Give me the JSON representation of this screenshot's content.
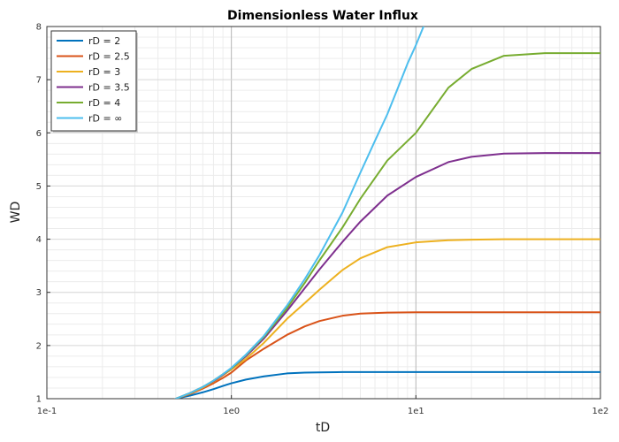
{
  "chart_data": {
    "type": "line",
    "title": "Dimensionless Water Influx",
    "xlabel": "tD",
    "ylabel": "WD",
    "xscale": "log",
    "xlim": [
      0.1,
      100
    ],
    "ylim": [
      1,
      8
    ],
    "x_tick_labels": [
      "1e-1",
      "1e0",
      "1e1",
      "1e2"
    ],
    "y_tick_labels": [
      "1",
      "2",
      "3",
      "4",
      "5",
      "6",
      "7",
      "8"
    ],
    "grid": true,
    "legend_position": "top-left",
    "series": [
      {
        "name": "rD = 2",
        "color": "#0072bd",
        "x": [
          0.5,
          0.6,
          0.7,
          0.8,
          0.9,
          1.0,
          1.2,
          1.5,
          2.0,
          2.5,
          3.0,
          4.0,
          5.0,
          7.0,
          10,
          20,
          50,
          100
        ],
        "y": [
          1.0,
          1.06,
          1.12,
          1.18,
          1.24,
          1.29,
          1.36,
          1.42,
          1.475,
          1.49,
          1.495,
          1.5,
          1.5,
          1.5,
          1.5,
          1.5,
          1.5,
          1.5
        ]
      },
      {
        "name": "rD = 2.5",
        "color": "#d95319",
        "x": [
          0.5,
          0.6,
          0.7,
          0.8,
          0.9,
          1.0,
          1.2,
          1.5,
          2.0,
          2.5,
          3.0,
          4.0,
          5.0,
          7.0,
          10,
          20,
          50,
          100
        ],
        "y": [
          1.0,
          1.09,
          1.19,
          1.29,
          1.39,
          1.49,
          1.72,
          1.94,
          2.2,
          2.36,
          2.46,
          2.56,
          2.6,
          2.62,
          2.625,
          2.625,
          2.625,
          2.625
        ]
      },
      {
        "name": "rD = 3",
        "color": "#edb120",
        "x": [
          0.5,
          0.6,
          0.7,
          0.8,
          0.9,
          1.0,
          1.2,
          1.5,
          2.0,
          2.5,
          3.0,
          4.0,
          5.0,
          7.0,
          10,
          15,
          20,
          30,
          50,
          100
        ],
        "y": [
          1.0,
          1.1,
          1.21,
          1.32,
          1.44,
          1.55,
          1.75,
          2.05,
          2.5,
          2.8,
          3.05,
          3.42,
          3.64,
          3.85,
          3.94,
          3.98,
          3.99,
          4.0,
          4.0,
          4.0
        ]
      },
      {
        "name": "rD = 3.5",
        "color": "#7e2f8e",
        "x": [
          0.5,
          0.6,
          0.7,
          0.8,
          0.9,
          1.0,
          1.2,
          1.5,
          2.0,
          2.5,
          3.0,
          4.0,
          5.0,
          7.0,
          10,
          15,
          20,
          30,
          50,
          100
        ],
        "y": [
          1.0,
          1.11,
          1.22,
          1.33,
          1.45,
          1.57,
          1.8,
          2.13,
          2.65,
          3.08,
          3.43,
          3.95,
          4.33,
          4.82,
          5.17,
          5.45,
          5.55,
          5.61,
          5.62,
          5.62
        ]
      },
      {
        "name": "rD = 4",
        "color": "#77ac30",
        "x": [
          0.5,
          0.6,
          0.7,
          0.8,
          0.9,
          1.0,
          1.2,
          1.5,
          2.0,
          2.5,
          3.0,
          4.0,
          5.0,
          7.0,
          10,
          15,
          20,
          30,
          50,
          100
        ],
        "y": [
          1.0,
          1.11,
          1.22,
          1.34,
          1.46,
          1.57,
          1.82,
          2.16,
          2.7,
          3.18,
          3.6,
          4.22,
          4.76,
          5.48,
          6.0,
          6.85,
          7.2,
          7.45,
          7.5,
          7.5
        ]
      },
      {
        "name": "rD = ∞",
        "color": "#4dbeee",
        "x": [
          0.5,
          0.6,
          0.7,
          0.8,
          0.9,
          1.0,
          1.2,
          1.5,
          2.0,
          2.5,
          3.0,
          4.0,
          5.0,
          6.0,
          7.0,
          8.0,
          9.0,
          10,
          11
        ],
        "y": [
          1.0,
          1.11,
          1.22,
          1.34,
          1.46,
          1.58,
          1.83,
          2.18,
          2.75,
          3.25,
          3.7,
          4.5,
          5.25,
          5.85,
          6.35,
          6.85,
          7.3,
          7.65,
          8.0
        ]
      }
    ]
  }
}
